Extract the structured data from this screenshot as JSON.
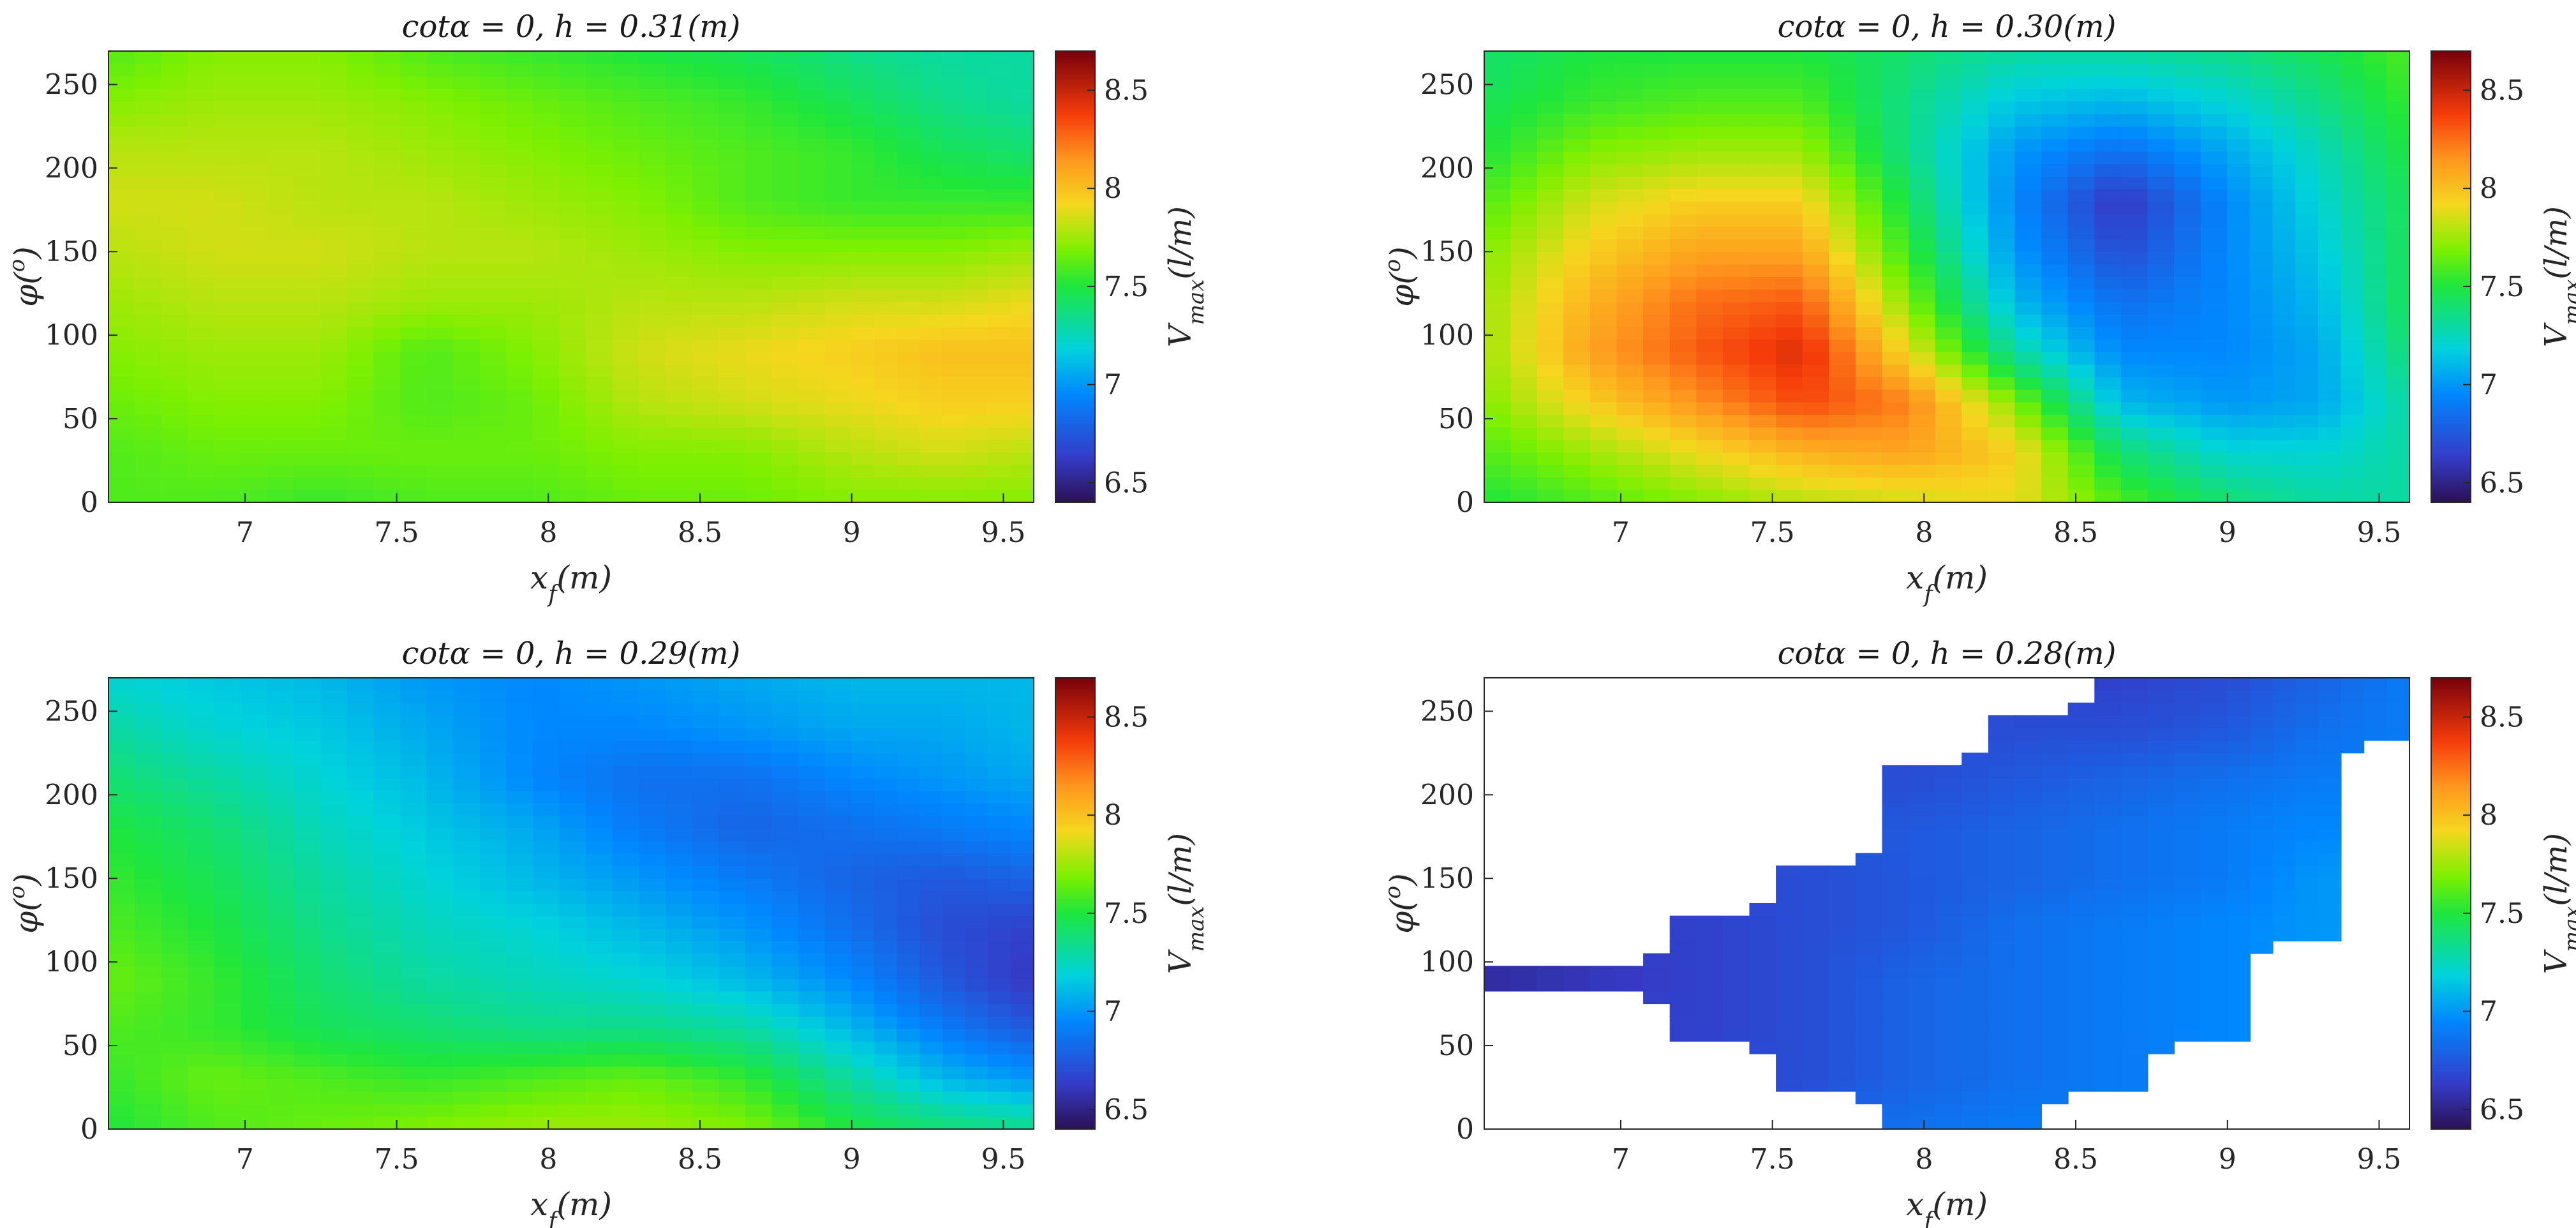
{
  "chart_data": [
    {
      "type": "heatmap",
      "title": "cotα = 0, h = 0.31(m)",
      "xlabel": "x_f(m)",
      "ylabel": "φ(^o)",
      "colorbar_label": "V_max(l/m)",
      "xlim": [
        6.55,
        9.6
      ],
      "ylim": [
        0,
        270
      ],
      "clim": [
        6.4,
        8.7
      ],
      "xticks": [
        "7",
        "7.5",
        "8",
        "8.5",
        "9",
        "9.5"
      ],
      "yticks": [
        "0",
        "50",
        "100",
        "150",
        "200",
        "250"
      ],
      "cticks": [
        "6.5",
        "7",
        "7.5",
        "8",
        "8.5"
      ],
      "x": [
        6.55,
        6.9,
        7.25,
        7.6,
        7.95,
        8.3,
        8.65,
        9.0,
        9.3,
        9.6
      ],
      "y": [
        0,
        30,
        60,
        90,
        120,
        150,
        180,
        210,
        240,
        270
      ],
      "z": [
        [
          7.6,
          7.6,
          7.55,
          7.6,
          7.6,
          7.65,
          7.65,
          7.7,
          7.7,
          7.7
        ],
        [
          7.6,
          7.65,
          7.65,
          7.65,
          7.65,
          7.7,
          7.7,
          7.8,
          7.85,
          7.8
        ],
        [
          7.65,
          7.7,
          7.7,
          7.6,
          7.65,
          7.8,
          7.85,
          7.9,
          7.95,
          7.95
        ],
        [
          7.7,
          7.75,
          7.75,
          7.6,
          7.7,
          7.85,
          7.9,
          7.95,
          8.0,
          8.0
        ],
        [
          7.75,
          7.8,
          7.8,
          7.75,
          7.75,
          7.8,
          7.8,
          7.85,
          7.85,
          7.9
        ],
        [
          7.8,
          7.85,
          7.85,
          7.8,
          7.8,
          7.75,
          7.7,
          7.7,
          7.7,
          7.75
        ],
        [
          7.85,
          7.85,
          7.8,
          7.8,
          7.75,
          7.7,
          7.6,
          7.55,
          7.55,
          7.55
        ],
        [
          7.8,
          7.8,
          7.8,
          7.75,
          7.7,
          7.65,
          7.6,
          7.55,
          7.45,
          7.4
        ],
        [
          7.7,
          7.75,
          7.75,
          7.7,
          7.65,
          7.6,
          7.55,
          7.45,
          7.35,
          7.3
        ],
        [
          7.6,
          7.7,
          7.7,
          7.6,
          7.55,
          7.5,
          7.45,
          7.35,
          7.3,
          7.3
        ]
      ]
    },
    {
      "type": "heatmap",
      "title": "cotα = 0, h = 0.30(m)",
      "xlabel": "x_f(m)",
      "ylabel": "φ(^o)",
      "colorbar_label": "V_max(l/m)",
      "xlim": [
        6.55,
        9.6
      ],
      "ylim": [
        0,
        270
      ],
      "clim": [
        6.4,
        8.7
      ],
      "xticks": [
        "7",
        "7.5",
        "8",
        "8.5",
        "9",
        "9.5"
      ],
      "yticks": [
        "0",
        "50",
        "100",
        "150",
        "200",
        "250"
      ],
      "cticks": [
        "6.5",
        "7",
        "7.5",
        "8",
        "8.5"
      ],
      "x": [
        6.55,
        6.9,
        7.25,
        7.6,
        7.95,
        8.3,
        8.65,
        9.0,
        9.3,
        9.6
      ],
      "y": [
        0,
        30,
        60,
        90,
        120,
        150,
        180,
        210,
        240,
        270
      ],
      "z": [
        [
          7.5,
          7.6,
          7.7,
          7.8,
          7.85,
          7.9,
          7.6,
          7.4,
          7.3,
          7.3
        ],
        [
          7.6,
          7.75,
          7.9,
          8.05,
          8.1,
          7.95,
          7.4,
          7.2,
          7.2,
          7.3
        ],
        [
          7.7,
          7.95,
          8.15,
          8.35,
          8.2,
          7.7,
          7.1,
          7.0,
          7.05,
          7.3
        ],
        [
          7.75,
          8.1,
          8.3,
          8.45,
          7.9,
          7.3,
          6.95,
          6.95,
          7.05,
          7.4
        ],
        [
          7.75,
          8.05,
          8.25,
          8.3,
          7.7,
          7.1,
          6.85,
          6.95,
          7.1,
          7.45
        ],
        [
          7.7,
          7.95,
          8.1,
          8.1,
          7.55,
          7.0,
          6.7,
          6.95,
          7.15,
          7.45
        ],
        [
          7.6,
          7.85,
          7.95,
          7.95,
          7.45,
          6.95,
          6.6,
          6.95,
          7.2,
          7.45
        ],
        [
          7.5,
          7.7,
          7.75,
          7.75,
          7.35,
          7.0,
          6.85,
          7.05,
          7.25,
          7.5
        ],
        [
          7.45,
          7.55,
          7.6,
          7.6,
          7.35,
          7.15,
          7.1,
          7.2,
          7.35,
          7.55
        ],
        [
          7.4,
          7.5,
          7.5,
          7.5,
          7.4,
          7.3,
          7.3,
          7.35,
          7.45,
          7.6
        ]
      ]
    },
    {
      "type": "heatmap",
      "title": "cotα = 0, h = 0.29(m)",
      "xlabel": "x_f(m)",
      "ylabel": "φ(^o)",
      "colorbar_label": "V_max(l/m)",
      "xlim": [
        6.55,
        9.6
      ],
      "ylim": [
        0,
        270
      ],
      "clim": [
        6.4,
        8.7
      ],
      "xticks": [
        "7",
        "7.5",
        "8",
        "8.5",
        "9",
        "9.5"
      ],
      "yticks": [
        "0",
        "50",
        "100",
        "150",
        "200",
        "250"
      ],
      "cticks": [
        "6.5",
        "7",
        "7.5",
        "8",
        "8.5"
      ],
      "x": [
        6.55,
        6.9,
        7.25,
        7.6,
        7.95,
        8.3,
        8.65,
        9.0,
        9.3,
        9.6
      ],
      "y": [
        0,
        30,
        60,
        90,
        120,
        150,
        180,
        210,
        240,
        270
      ],
      "z": [
        [
          7.5,
          7.6,
          7.65,
          7.7,
          7.75,
          7.75,
          7.7,
          7.5,
          7.4,
          7.35
        ],
        [
          7.55,
          7.65,
          7.6,
          7.55,
          7.6,
          7.65,
          7.55,
          7.3,
          7.1,
          7.0
        ],
        [
          7.6,
          7.55,
          7.45,
          7.4,
          7.35,
          7.35,
          7.3,
          7.1,
          6.9,
          6.75
        ],
        [
          7.65,
          7.55,
          7.4,
          7.3,
          7.25,
          7.2,
          7.1,
          6.95,
          6.75,
          6.6
        ],
        [
          7.6,
          7.5,
          7.35,
          7.25,
          7.2,
          7.1,
          7.0,
          6.85,
          6.7,
          6.65
        ],
        [
          7.55,
          7.45,
          7.3,
          7.2,
          7.1,
          7.0,
          6.9,
          6.8,
          6.75,
          6.8
        ],
        [
          7.5,
          7.4,
          7.25,
          7.15,
          7.05,
          6.9,
          6.8,
          6.85,
          6.9,
          6.95
        ],
        [
          7.4,
          7.3,
          7.2,
          7.1,
          6.95,
          6.85,
          6.85,
          6.95,
          7.0,
          7.05
        ],
        [
          7.3,
          7.2,
          7.15,
          7.05,
          6.95,
          6.95,
          7.0,
          7.05,
          7.05,
          7.1
        ],
        [
          7.2,
          7.15,
          7.1,
          7.0,
          6.95,
          7.0,
          7.05,
          7.1,
          7.1,
          7.1
        ]
      ]
    },
    {
      "type": "heatmap",
      "title": "cotα = 0, h = 0.28(m)",
      "xlabel": "x_f(m)",
      "ylabel": "φ(^o)",
      "colorbar_label": "V_max(l/m)",
      "xlim": [
        6.55,
        9.6
      ],
      "ylim": [
        0,
        270
      ],
      "clim": [
        6.4,
        8.7
      ],
      "xticks": [
        "7",
        "7.5",
        "8",
        "8.5",
        "9",
        "9.5"
      ],
      "yticks": [
        "0",
        "50",
        "100",
        "150",
        "200",
        "250"
      ],
      "cticks": [
        "6.5",
        "7",
        "7.5",
        "8",
        "8.5"
      ],
      "x": [
        6.55,
        6.9,
        7.25,
        7.6,
        7.95,
        8.3,
        8.65,
        9.0,
        9.3,
        9.6
      ],
      "y": [
        0,
        30,
        60,
        90,
        120,
        150,
        180,
        210,
        240,
        270
      ],
      "z": [
        [
          null,
          null,
          null,
          null,
          6.85,
          6.9,
          null,
          null,
          null,
          null
        ],
        [
          null,
          null,
          null,
          6.7,
          6.8,
          6.85,
          6.9,
          null,
          null,
          null
        ],
        [
          null,
          null,
          6.65,
          6.7,
          6.8,
          6.85,
          6.9,
          6.95,
          null,
          null
        ],
        [
          6.55,
          6.6,
          6.65,
          6.7,
          6.8,
          6.85,
          6.9,
          6.95,
          null,
          null
        ],
        [
          null,
          null,
          6.65,
          6.7,
          6.75,
          6.85,
          6.9,
          6.95,
          7.0,
          null
        ],
        [
          null,
          null,
          null,
          6.7,
          6.75,
          6.8,
          6.85,
          6.9,
          7.0,
          null
        ],
        [
          null,
          null,
          null,
          null,
          6.75,
          6.8,
          6.85,
          6.9,
          6.95,
          null
        ],
        [
          null,
          null,
          null,
          null,
          6.7,
          6.75,
          6.8,
          6.85,
          6.9,
          null
        ],
        [
          null,
          null,
          null,
          null,
          null,
          6.7,
          6.7,
          6.75,
          6.85,
          6.9
        ],
        [
          null,
          null,
          null,
          null,
          null,
          null,
          6.65,
          6.7,
          6.8,
          6.9
        ]
      ]
    }
  ]
}
